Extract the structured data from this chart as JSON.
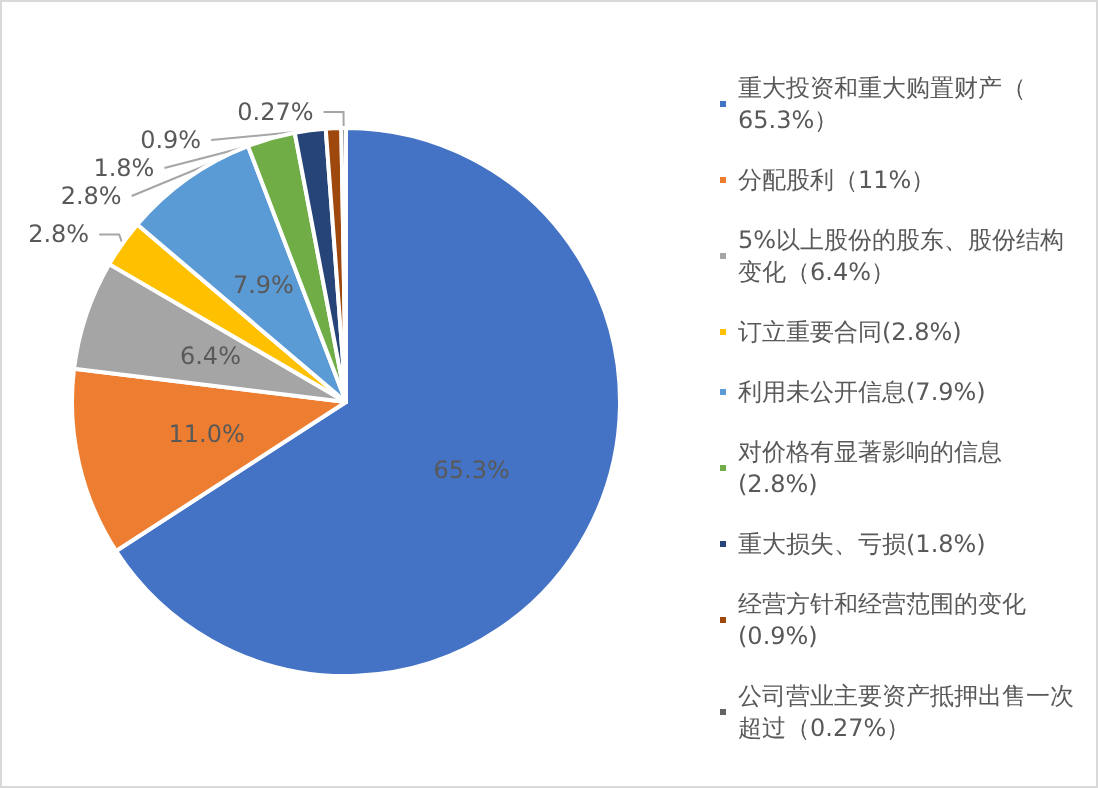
{
  "chart_data": {
    "type": "pie",
    "categories": [
      "重大投资和重大购置财产（65.3%）",
      "分配股利（11%）",
      "5%以上股份的股东、股份结构变化（6.4%）",
      "订立重要合同(2.8%)",
      "利用未公开信息(7.9%)",
      "对价格有显著影响的信息(2.8%)",
      "重大损失、亏损(1.8%)",
      "经营方针和经营范围的变化(0.9%)",
      "公司营业主要资产抵押出售一次超过（0.27%）"
    ],
    "values": [
      65.3,
      11.0,
      6.4,
      2.8,
      7.9,
      2.8,
      1.8,
      0.9,
      0.27
    ],
    "value_labels": [
      "65.3%",
      "11.0%",
      "6.4%",
      "2.8%",
      "7.9%",
      "2.8%",
      "1.8%",
      "0.9%",
      "0.27%"
    ],
    "colors": [
      "#4472c4",
      "#ed7d31",
      "#a5a5a5",
      "#ffc000",
      "#5b9bd5",
      "#70ad47",
      "#264478",
      "#9e480e",
      "#636363"
    ],
    "legend": "right"
  }
}
